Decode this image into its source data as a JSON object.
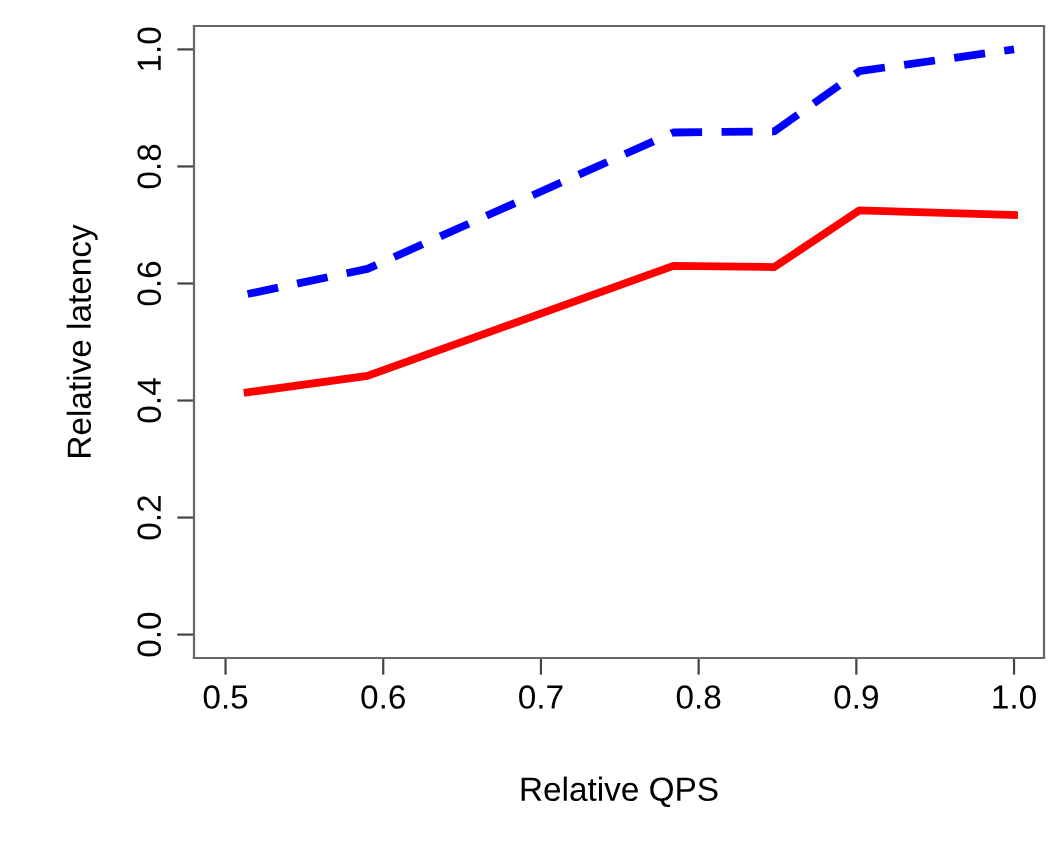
{
  "chart_data": {
    "type": "line",
    "xlabel": "Relative QPS",
    "ylabel": "Relative latency",
    "x": [
      0.514,
      0.59,
      0.784,
      0.848,
      0.902,
      1.0
    ],
    "series": [
      {
        "color": "#0000ff",
        "line_style": "dashed",
        "values": [
          0.582,
          0.625,
          0.858,
          0.86,
          0.963,
          1.0
        ]
      },
      {
        "color": "#ff0000",
        "line_style": "solid",
        "values": [
          0.414,
          0.442,
          0.63,
          0.628,
          0.725,
          0.717
        ]
      }
    ],
    "xlim": [
      0.48,
      1.019
    ],
    "ylim": [
      -0.04,
      1.04
    ],
    "xticks": [
      0.5,
      0.6,
      0.7,
      0.8,
      0.9,
      {
        "value": 1,
        "label": "1.0"
      }
    ],
    "yticks": [
      {
        "value": 0,
        "label": "0.0"
      },
      0.2,
      0.4,
      0.6,
      0.8,
      {
        "value": 1,
        "label": "1.0"
      }
    ],
    "grid": false,
    "marker": "none"
  }
}
